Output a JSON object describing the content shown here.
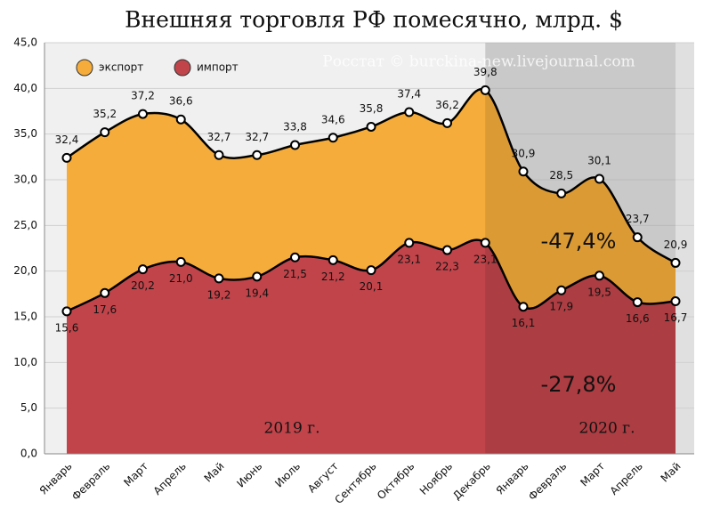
{
  "chart_data": {
    "type": "area",
    "title": "Внешняя торговля РФ помесячно, млрд. $",
    "categories": [
      "Январь",
      "Февраль",
      "Март",
      "Апрель",
      "Май",
      "Июнь",
      "Июль",
      "Август",
      "Сентябрь",
      "Октябрь",
      "Ноябрь",
      "Декабрь",
      "Январь",
      "Февраль",
      "Март",
      "Апрель",
      "Май"
    ],
    "series": [
      {
        "name": "экспорт",
        "color": "#f5ac3a",
        "values": [
          32.4,
          35.2,
          37.2,
          36.6,
          32.7,
          32.7,
          33.8,
          34.6,
          35.8,
          37.4,
          36.2,
          39.8,
          30.9,
          28.5,
          30.1,
          23.7,
          20.9
        ],
        "value_labels": [
          "32,4",
          "35,2",
          "37,2",
          "36,6",
          "32,7",
          "32,7",
          "33,8",
          "34,6",
          "35,8",
          "37,4",
          "36,2",
          "39,8",
          "30,9",
          "28,5",
          "30,1",
          "23,7",
          "20,9"
        ]
      },
      {
        "name": "импорт",
        "color": "#c0444a",
        "values": [
          15.6,
          17.6,
          20.2,
          21.0,
          19.2,
          19.4,
          21.5,
          21.2,
          20.1,
          23.1,
          22.3,
          23.1,
          16.1,
          17.9,
          19.5,
          16.6,
          16.7
        ],
        "value_labels": [
          "15,6",
          "17,6",
          "20,2",
          "21,0",
          "19,2",
          "19,4",
          "21,5",
          "21,2",
          "20,1",
          "23,1",
          "22,3",
          "23,1",
          "16,1",
          "17,9",
          "19,5",
          "16,6",
          "16,7"
        ]
      }
    ],
    "ylim": [
      0,
      45
    ],
    "yticks": [
      {
        "value": 0,
        "label": "0,0"
      },
      {
        "value": 5,
        "label": "5,0"
      },
      {
        "value": 10,
        "label": "10,0"
      },
      {
        "value": 15,
        "label": "15,0"
      },
      {
        "value": 20,
        "label": "20,0"
      },
      {
        "value": 25,
        "label": "25,0"
      },
      {
        "value": 30,
        "label": "30,0"
      },
      {
        "value": 35,
        "label": "35,0"
      },
      {
        "value": 40,
        "label": "40,0"
      },
      {
        "value": 45,
        "label": "45,0"
      }
    ],
    "grid": true,
    "legend": "top-left",
    "annotations": [
      "Росстат © burckina-new.livejournal.com",
      "-47,4%",
      "-27,8%",
      "2019 г.",
      "2020 г."
    ]
  }
}
